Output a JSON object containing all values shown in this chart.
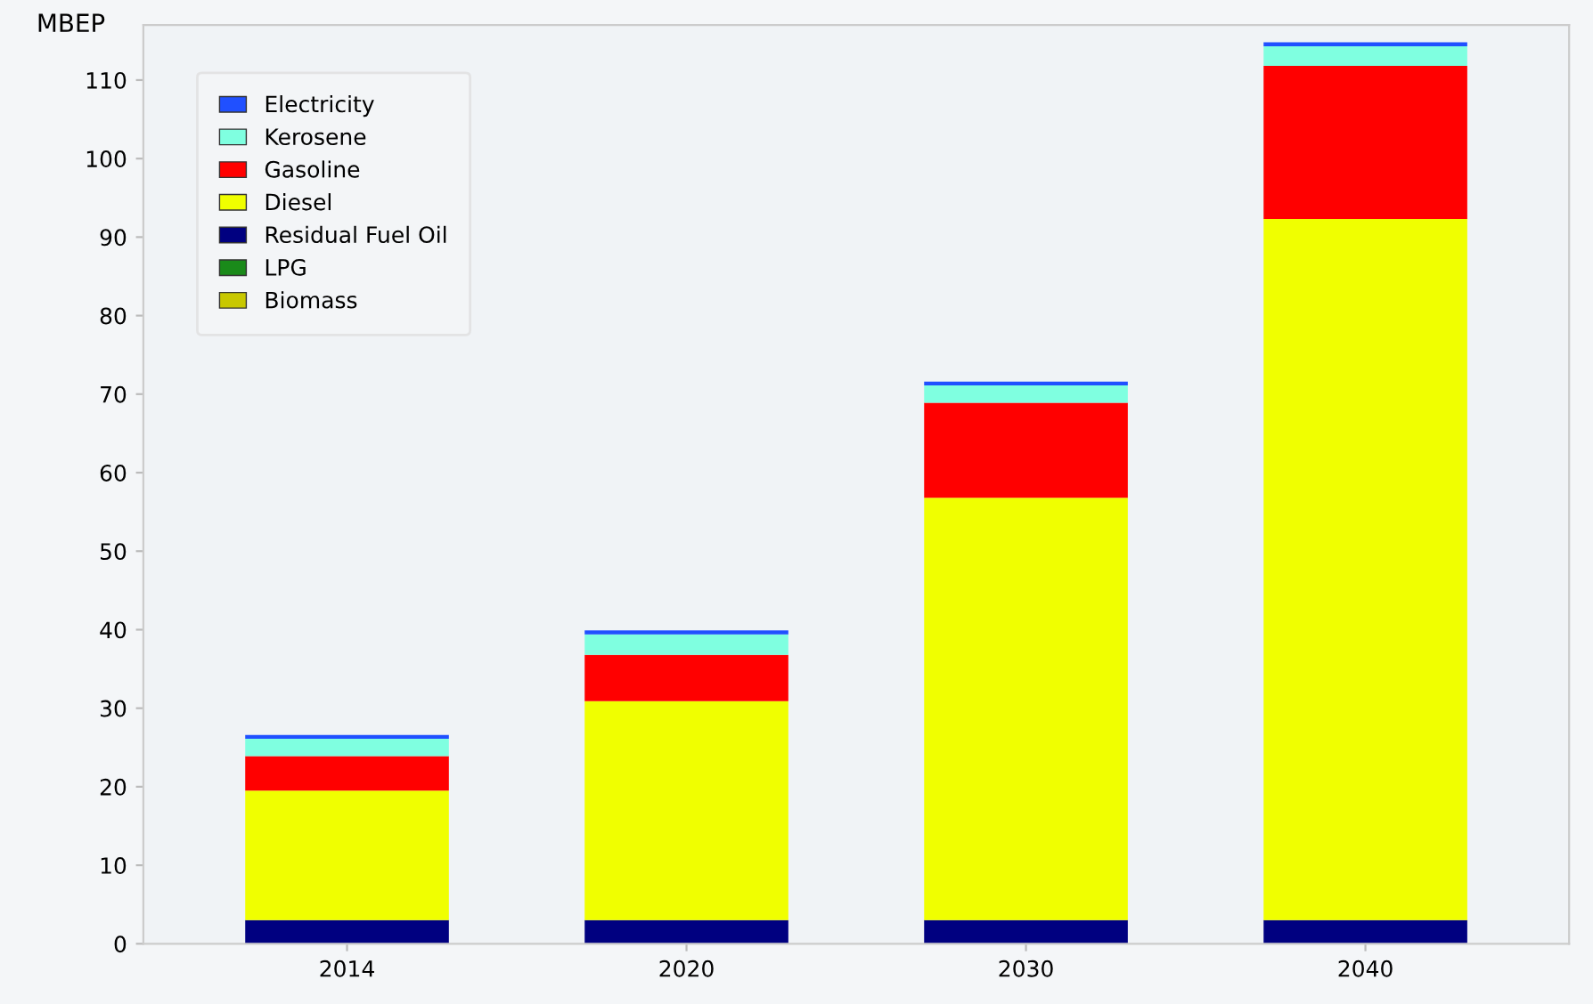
{
  "chart_data": {
    "type": "bar",
    "stacked": true,
    "ylabel": "MBEP",
    "categories": [
      "2014",
      "2020",
      "2030",
      "2040"
    ],
    "series": [
      {
        "name": "Biomass",
        "color": "#c8c800",
        "values": [
          0,
          0,
          0,
          0
        ]
      },
      {
        "name": "LPG",
        "color": "#1a8a1a",
        "values": [
          0,
          0,
          0,
          0
        ]
      },
      {
        "name": "Residual Fuel Oil",
        "color": "#000080",
        "values": [
          3,
          3,
          3,
          3
        ]
      },
      {
        "name": "Diesel",
        "color": "#f0ff00",
        "values": [
          16.5,
          27.9,
          53.8,
          89.3
        ]
      },
      {
        "name": "Gasoline",
        "color": "#ff0000",
        "values": [
          4.4,
          5.9,
          12.1,
          19.5
        ]
      },
      {
        "name": "Kerosene",
        "color": "#7fffe0",
        "values": [
          2.2,
          2.6,
          2.2,
          2.5
        ]
      },
      {
        "name": "Electricity",
        "color": "#2050ff",
        "values": [
          0.5,
          0.5,
          0.5,
          0.5
        ]
      }
    ],
    "ylim": [
      0,
      117
    ],
    "yticks": [
      0,
      10,
      20,
      30,
      40,
      50,
      60,
      70,
      80,
      90,
      100,
      110
    ],
    "legend": "top left",
    "grid": false
  }
}
